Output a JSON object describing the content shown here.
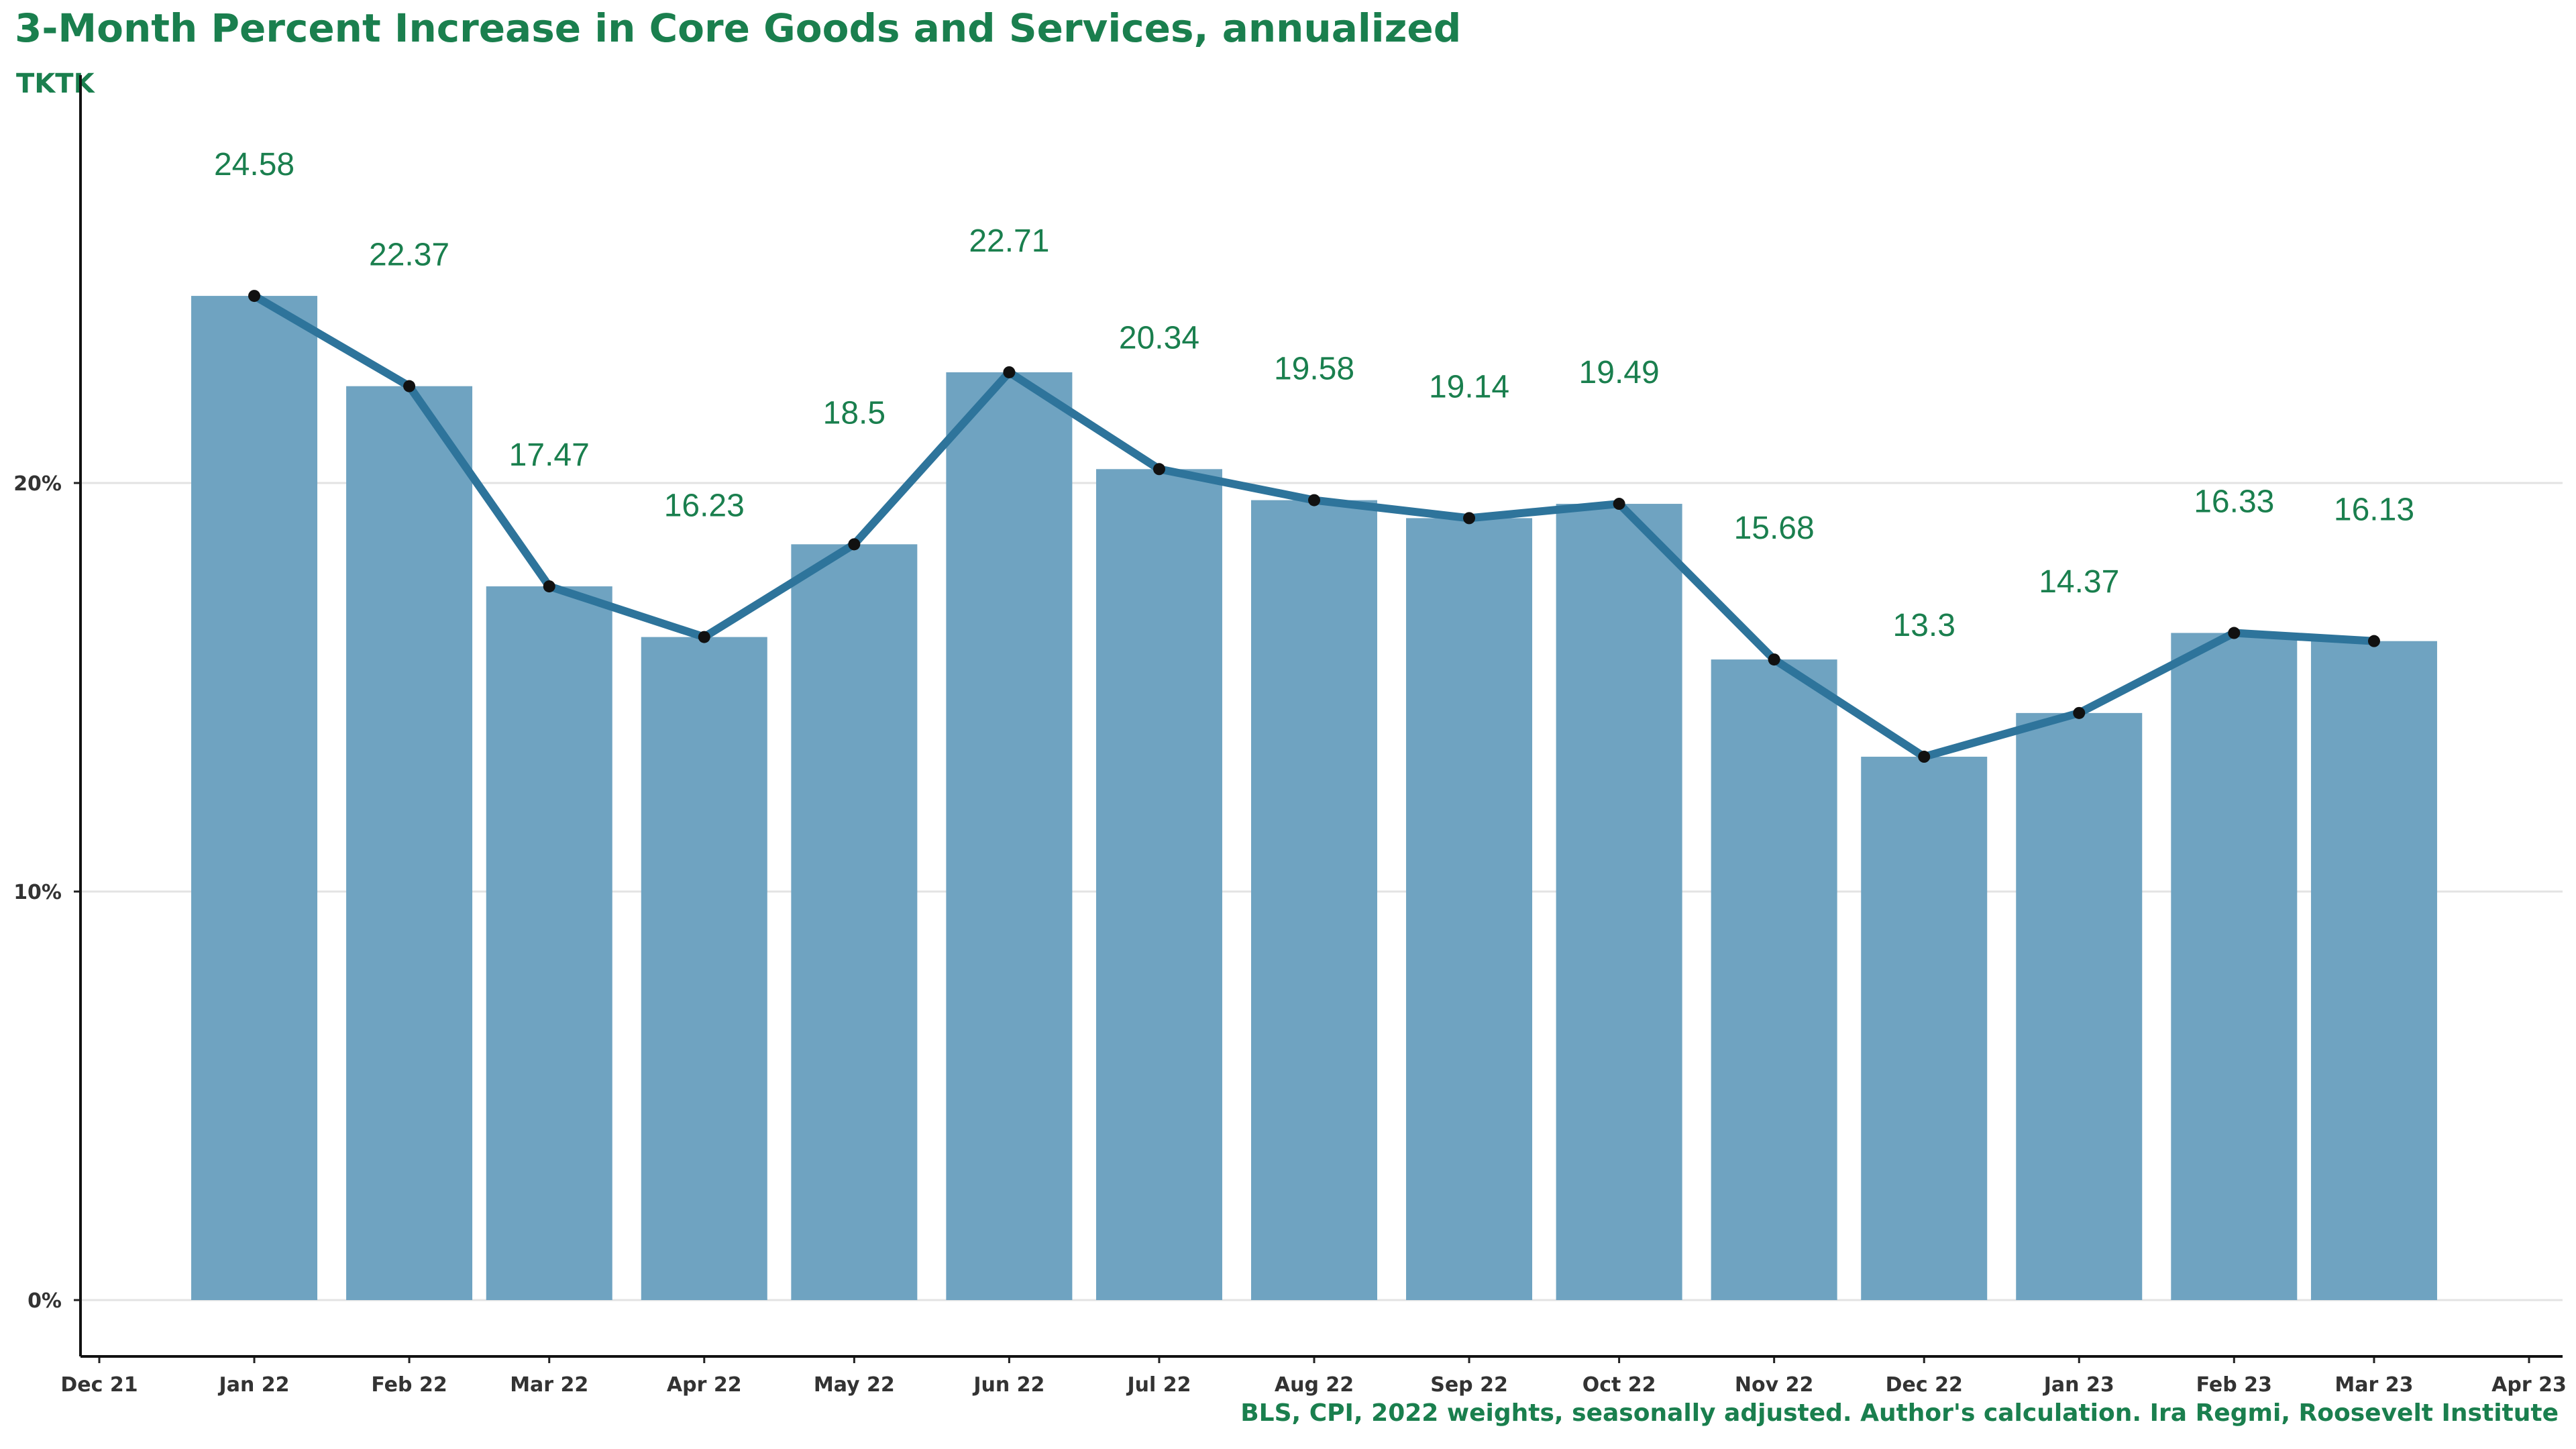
{
  "chart_data": {
    "type": "bar",
    "title": "3-Month Percent Increase in Core Goods and Services, annualized",
    "subtitle": "TKTK",
    "caption": "BLS, CPI, 2022 weights, seasonally adjusted. Author's calculation. Ira Regmi, Roosevelt Institute",
    "xlabel": "",
    "ylabel": "",
    "x_tick_labels": [
      "Dec 21",
      "Jan 22",
      "Feb 22",
      "Mar 22",
      "Apr 22",
      "May 22",
      "Jun 22",
      "Jul 22",
      "Aug 22",
      "Sep 22",
      "Oct 22",
      "Nov 22",
      "Dec 22",
      "Jan 23",
      "Feb 23",
      "Mar 23",
      "Apr 23"
    ],
    "x_range": [
      "2021-12-01",
      "2023-04-01"
    ],
    "y_ticks": [
      0,
      10,
      20
    ],
    "y_tick_labels": [
      "0%",
      "10%",
      "20%"
    ],
    "ylim": [
      0,
      28
    ],
    "grid": "horizontal",
    "bar_color": "#6fa3c1",
    "line_color": "#2e749b",
    "label_color": "#1a7f4e",
    "dates": [
      "2022-01-01",
      "2022-02-01",
      "2022-03-01",
      "2022-04-01",
      "2022-05-01",
      "2022-06-01",
      "2022-07-01",
      "2022-08-01",
      "2022-09-01",
      "2022-10-01",
      "2022-11-01",
      "2022-12-01",
      "2023-01-01",
      "2023-02-01",
      "2023-03-01"
    ],
    "values": [
      24.58,
      22.37,
      17.47,
      16.23,
      18.5,
      22.71,
      20.34,
      19.58,
      19.14,
      19.49,
      15.68,
      13.3,
      14.37,
      16.33,
      16.13
    ],
    "value_labels": [
      "24.58",
      "22.37",
      "17.47",
      "16.23",
      "18.5",
      "22.71",
      "20.34",
      "19.58",
      "19.14",
      "19.49",
      "15.68",
      "13.3",
      "14.37",
      "16.33",
      "16.13"
    ]
  }
}
